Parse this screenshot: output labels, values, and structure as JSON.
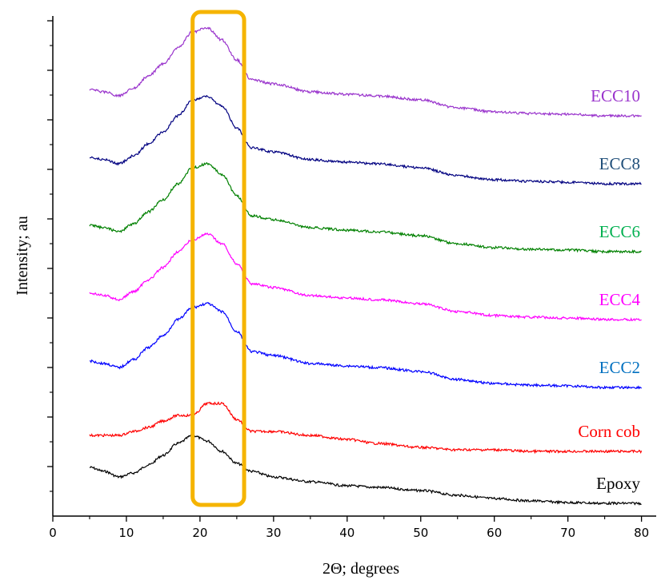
{
  "chart_data": {
    "type": "line",
    "title": "",
    "xlabel": "2Θ; degrees",
    "ylabel": "Intensity; au",
    "xlim": [
      0,
      82
    ],
    "x_ticks": [
      0,
      10,
      20,
      30,
      40,
      50,
      60,
      70,
      80
    ],
    "x_tick_labels": [
      "0",
      "10",
      "20",
      "30",
      "40",
      "50",
      "60",
      "70",
      "80"
    ],
    "y_ticks": "unlabeled",
    "grid": false,
    "legend": "inline labels at right end of each curve",
    "highlight_region": {
      "x_range": [
        19,
        26
      ],
      "color": "#F5B400",
      "label": ""
    },
    "x": [
      5,
      7,
      9,
      11,
      13,
      15,
      17,
      19,
      21,
      23,
      25,
      27,
      30,
      35,
      40,
      44,
      50,
      55,
      60,
      65,
      70,
      75,
      80
    ],
    "series": [
      {
        "name": "Epoxy",
        "color": "#000000",
        "baseline": 0,
        "values": [
          45,
          40,
          33,
          38,
          48,
          60,
          75,
          85,
          78,
          65,
          50,
          40,
          33,
          27,
          22,
          20,
          16,
          10,
          6,
          3,
          1,
          0,
          0
        ]
      },
      {
        "name": "Corn cob",
        "color": "#FF0000",
        "baseline": 0.5,
        "values": [
          0,
          0,
          0,
          5,
          10,
          18,
          25,
          25,
          40,
          40,
          20,
          5,
          5,
          0,
          -5,
          -10,
          -15,
          -18,
          -18,
          -20,
          -20,
          -20,
          -20
        ]
      },
      {
        "name": "ECC2",
        "color": "#0000FF",
        "baseline": 1,
        "values": [
          8,
          5,
          0,
          10,
          25,
          40,
          60,
          75,
          80,
          70,
          45,
          20,
          15,
          5,
          2,
          0,
          -5,
          -15,
          -20,
          -22,
          -23,
          -25,
          -25
        ]
      },
      {
        "name": "ECC4",
        "color": "#FF00FF",
        "baseline": 1.5,
        "values": [
          8,
          5,
          0,
          10,
          25,
          40,
          60,
          75,
          82,
          70,
          45,
          20,
          15,
          5,
          2,
          0,
          -5,
          -15,
          -20,
          -22,
          -23,
          -25,
          -25
        ]
      },
      {
        "name": "ECC6",
        "color": "#008000",
        "baseline": 2,
        "values": [
          8,
          5,
          0,
          10,
          25,
          40,
          60,
          80,
          85,
          72,
          45,
          20,
          15,
          5,
          2,
          0,
          -5,
          -15,
          -20,
          -22,
          -23,
          -25,
          -25
        ]
      },
      {
        "name": "ECC8",
        "color": "#000080",
        "baseline": 2.5,
        "values": [
          8,
          5,
          0,
          10,
          25,
          40,
          60,
          80,
          84,
          72,
          45,
          20,
          15,
          5,
          2,
          0,
          -5,
          -15,
          -20,
          -22,
          -23,
          -25,
          -25
        ]
      },
      {
        "name": "ECC10",
        "color": "#9933CC",
        "baseline": 3,
        "values": [
          8,
          5,
          0,
          10,
          25,
          40,
          60,
          80,
          85,
          70,
          45,
          20,
          15,
          5,
          2,
          0,
          -5,
          -15,
          -20,
          -22,
          -23,
          -25,
          -25
        ]
      }
    ],
    "label_colors": {
      "Epoxy": "#000000",
      "Corn cob": "#FF0000",
      "ECC2": "#0070C0",
      "ECC4": "#FF00FF",
      "ECC6": "#00B050",
      "ECC8": "#1F4E79",
      "ECC10": "#9933CC"
    }
  }
}
